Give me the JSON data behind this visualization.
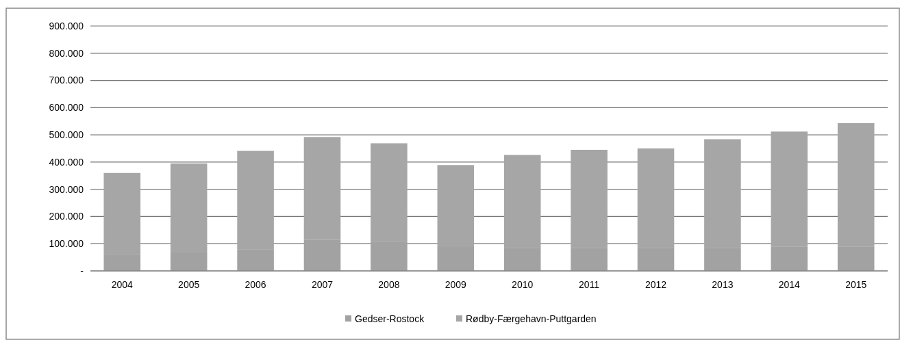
{
  "chart_data": {
    "type": "bar",
    "stacked": true,
    "categories": [
      "2004",
      "2005",
      "2006",
      "2007",
      "2008",
      "2009",
      "2010",
      "2011",
      "2012",
      "2013",
      "2014",
      "2015"
    ],
    "series": [
      {
        "name": "Gedser-Rostock",
        "color": "#a2a2a2",
        "values": [
          58000,
          68000,
          80000,
          115000,
          110000,
          88000,
          85000,
          85000,
          85000,
          85000,
          90000,
          90000
        ]
      },
      {
        "name": "Rødby-Færgehavn-Puttgarden",
        "color": "#a6a6a6",
        "values": [
          302000,
          327000,
          361000,
          377000,
          359000,
          301000,
          341000,
          360000,
          365000,
          399000,
          422000,
          453000
        ]
      }
    ],
    "ylim": [
      0,
      900000
    ],
    "yticks": [
      {
        "value": 0,
        "label": "-"
      },
      {
        "value": 100000,
        "label": "100.000"
      },
      {
        "value": 200000,
        "label": "200.000"
      },
      {
        "value": 300000,
        "label": "300.000"
      },
      {
        "value": 400000,
        "label": "400.000"
      },
      {
        "value": 500000,
        "label": "500.000"
      },
      {
        "value": 600000,
        "label": "600.000"
      },
      {
        "value": 700000,
        "label": "700.000"
      },
      {
        "value": 800000,
        "label": "800.000"
      },
      {
        "value": 900000,
        "label": "900.000"
      }
    ],
    "grid": "y",
    "legend": "bottom"
  }
}
